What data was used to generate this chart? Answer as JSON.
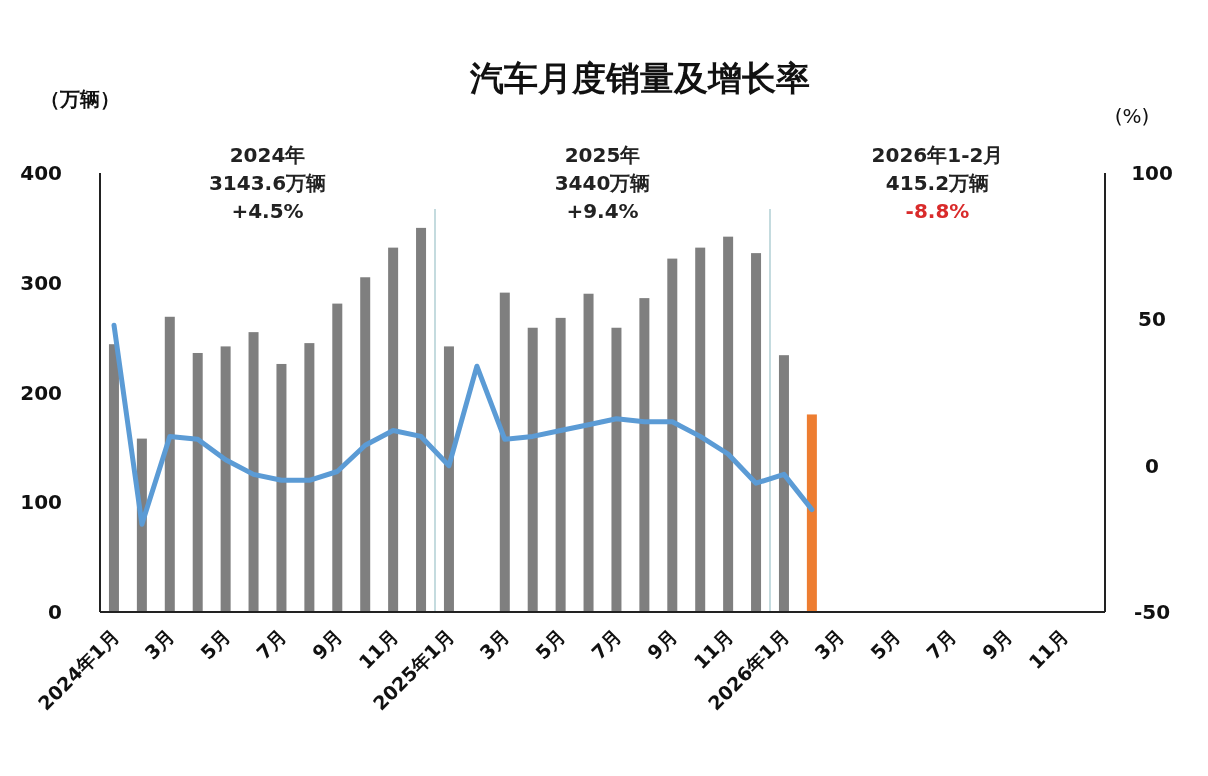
{
  "chart_data": {
    "type": "bar",
    "title": "汽车月度销量及增长率",
    "ylabel": "（万辆）",
    "y2label": "(%)",
    "categories": [
      "2024年1月",
      null,
      "3月",
      null,
      "5月",
      null,
      "7月",
      null,
      "9月",
      null,
      "11月",
      null,
      "2025年1月",
      null,
      "3月",
      null,
      "5月",
      null,
      "7月",
      null,
      "9月",
      null,
      "11月",
      null,
      "2026年1月",
      null,
      "3月",
      null,
      "5月",
      null,
      "7月",
      null,
      "9月",
      null,
      "11月",
      null
    ],
    "series": [
      {
        "colors": [
          "#7f7f7f",
          "#7f7f7f",
          "#7f7f7f",
          "#7f7f7f",
          "#7f7f7f",
          "#7f7f7f",
          "#7f7f7f",
          "#7f7f7f",
          "#7f7f7f",
          "#7f7f7f",
          "#7f7f7f",
          "#7f7f7f",
          "#7f7f7f",
          null,
          "#7f7f7f",
          "#7f7f7f",
          "#7f7f7f",
          "#7f7f7f",
          "#7f7f7f",
          "#7f7f7f",
          "#7f7f7f",
          "#7f7f7f",
          "#7f7f7f",
          "#7f7f7f",
          "#7f7f7f",
          "#ed7d31",
          null,
          null,
          null,
          null,
          null,
          null,
          null,
          null,
          null,
          null
        ],
        "values": [
          244,
          158,
          269,
          236,
          242,
          255,
          226,
          245,
          281,
          305,
          332,
          350,
          242,
          null,
          291,
          259,
          268,
          290,
          259,
          286,
          322,
          332,
          342,
          327,
          234,
          180,
          null,
          null,
          null,
          null,
          null,
          null,
          null,
          null,
          null,
          null
        ]
      },
      {
        "type": "line",
        "axis": "y2",
        "color": "#5b9bd5",
        "values": [
          48,
          -20,
          10,
          9,
          2,
          -3,
          -5,
          -5,
          -2,
          7,
          12,
          10,
          0,
          34,
          9,
          10,
          12,
          14,
          16,
          15,
          15,
          10,
          4,
          -6,
          -3,
          -15,
          null,
          null,
          null,
          null,
          null,
          null,
          null,
          null,
          null,
          null
        ]
      }
    ],
    "ylim": [
      0,
      400
    ],
    "yticks": [
      0,
      100,
      200,
      300,
      400
    ],
    "y2lim": [
      -50,
      100
    ],
    "y2ticks": [
      -50,
      0,
      50,
      100
    ],
    "annotations": [
      "2024年",
      "3143.6万辆",
      "+4.5%",
      "2025年",
      "3440万辆",
      "+9.4%",
      "2026年1-2月",
      "415.2万辆",
      "-8.8%"
    ],
    "grid": false
  }
}
